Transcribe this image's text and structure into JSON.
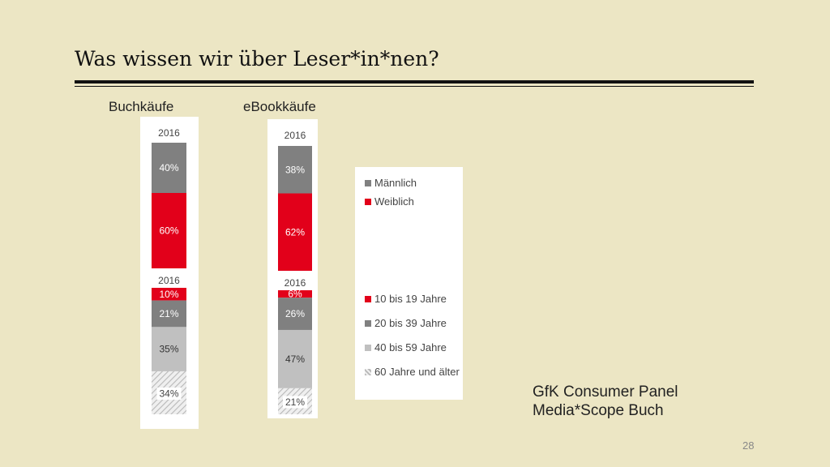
{
  "slide": {
    "title": "Was wissen wir über Leser*in*nen?",
    "source_line1": "GfK Consumer Panel",
    "source_line2": "Media*Scope Buch",
    "page_number": "28"
  },
  "colors": {
    "background": "#ece6c4",
    "male": "#808080",
    "female": "#e2001a",
    "age_10_19": "#e2001a",
    "age_20_39": "#808080",
    "age_40_59": "#c0c0c0",
    "age_60_plus": "#d8d8d8"
  },
  "legend": {
    "male": "Männlich",
    "female": "Weiblich",
    "age_10_19": "10 bis 19 Jahre",
    "age_20_39": "20 bis 39 Jahre",
    "age_40_59": "40 bis 59 Jahre",
    "age_60_plus": "60 Jahre und älter"
  },
  "chart_data": [
    {
      "type": "bar",
      "title": "Buchkäufe",
      "gender": {
        "year": "2016",
        "categories": [
          "Männlich",
          "Weiblich"
        ],
        "values": [
          40,
          60
        ],
        "labels": [
          "40%",
          "60%"
        ]
      },
      "age": {
        "year": "2016",
        "categories": [
          "10 bis 19 Jahre",
          "20 bis 39 Jahre",
          "40 bis 59 Jahre",
          "60 Jahre und älter"
        ],
        "values": [
          10,
          21,
          35,
          34
        ],
        "labels": [
          "10%",
          "21%",
          "35%",
          "34%"
        ]
      }
    },
    {
      "type": "bar",
      "title": "eBookkäufe",
      "gender": {
        "year": "2016",
        "categories": [
          "Männlich",
          "Weiblich"
        ],
        "values": [
          38,
          62
        ],
        "labels": [
          "38%",
          "62%"
        ]
      },
      "age": {
        "year": "2016",
        "categories": [
          "10 bis 19 Jahre",
          "20 bis 39 Jahre",
          "40 bis 59 Jahre",
          "60 Jahre und älter"
        ],
        "values": [
          6,
          26,
          47,
          21
        ],
        "labels": [
          "6%",
          "26%",
          "47%",
          "21%"
        ]
      }
    }
  ]
}
